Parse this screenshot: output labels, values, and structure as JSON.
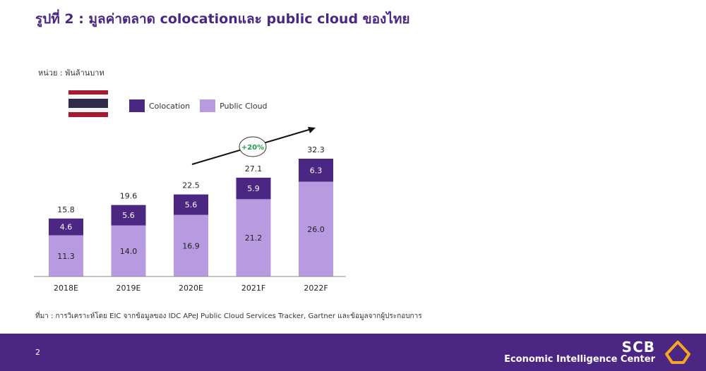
{
  "header": {
    "title": "รูปที่ 2 : มูลค่าตลาด colocationและ public cloud ของไทย"
  },
  "unit_label": "หน่วย : พันล้านบาท",
  "legend": {
    "colocation": "Colocation",
    "public_cloud": "Public Cloud"
  },
  "growth_badge": "+20%",
  "source": "ที่มา : การวิเคราะห์โดย EIC จากข้อมูลของ IDC APeJ Public Cloud Services Tracker, Gartner และข้อมูลจากผู้ประกอบการ",
  "footer": {
    "page_number": "2",
    "brand": "SCB",
    "brand_sub": "Economic Intelligence Center"
  },
  "colors": {
    "colocation": "#4b2683",
    "public_cloud": "#b79ae0",
    "title": "#4b2683",
    "footer_bg": "#4b2683",
    "badge_text": "#1e9e4a",
    "logo": "#f5a623"
  },
  "chart_data": {
    "type": "bar",
    "stacked": true,
    "categories": [
      "2018E",
      "2019E",
      "2020E",
      "2021F",
      "2022F"
    ],
    "series": [
      {
        "name": "Public Cloud",
        "values": [
          11.3,
          14.0,
          16.9,
          21.2,
          26.0
        ]
      },
      {
        "name": "Colocation",
        "values": [
          4.6,
          5.6,
          5.6,
          5.9,
          6.3
        ]
      }
    ],
    "totals": [
      15.8,
      19.6,
      22.5,
      27.1,
      32.3
    ],
    "ylim": [
      0,
      32.3
    ],
    "grid": false,
    "legend_position": "top"
  }
}
